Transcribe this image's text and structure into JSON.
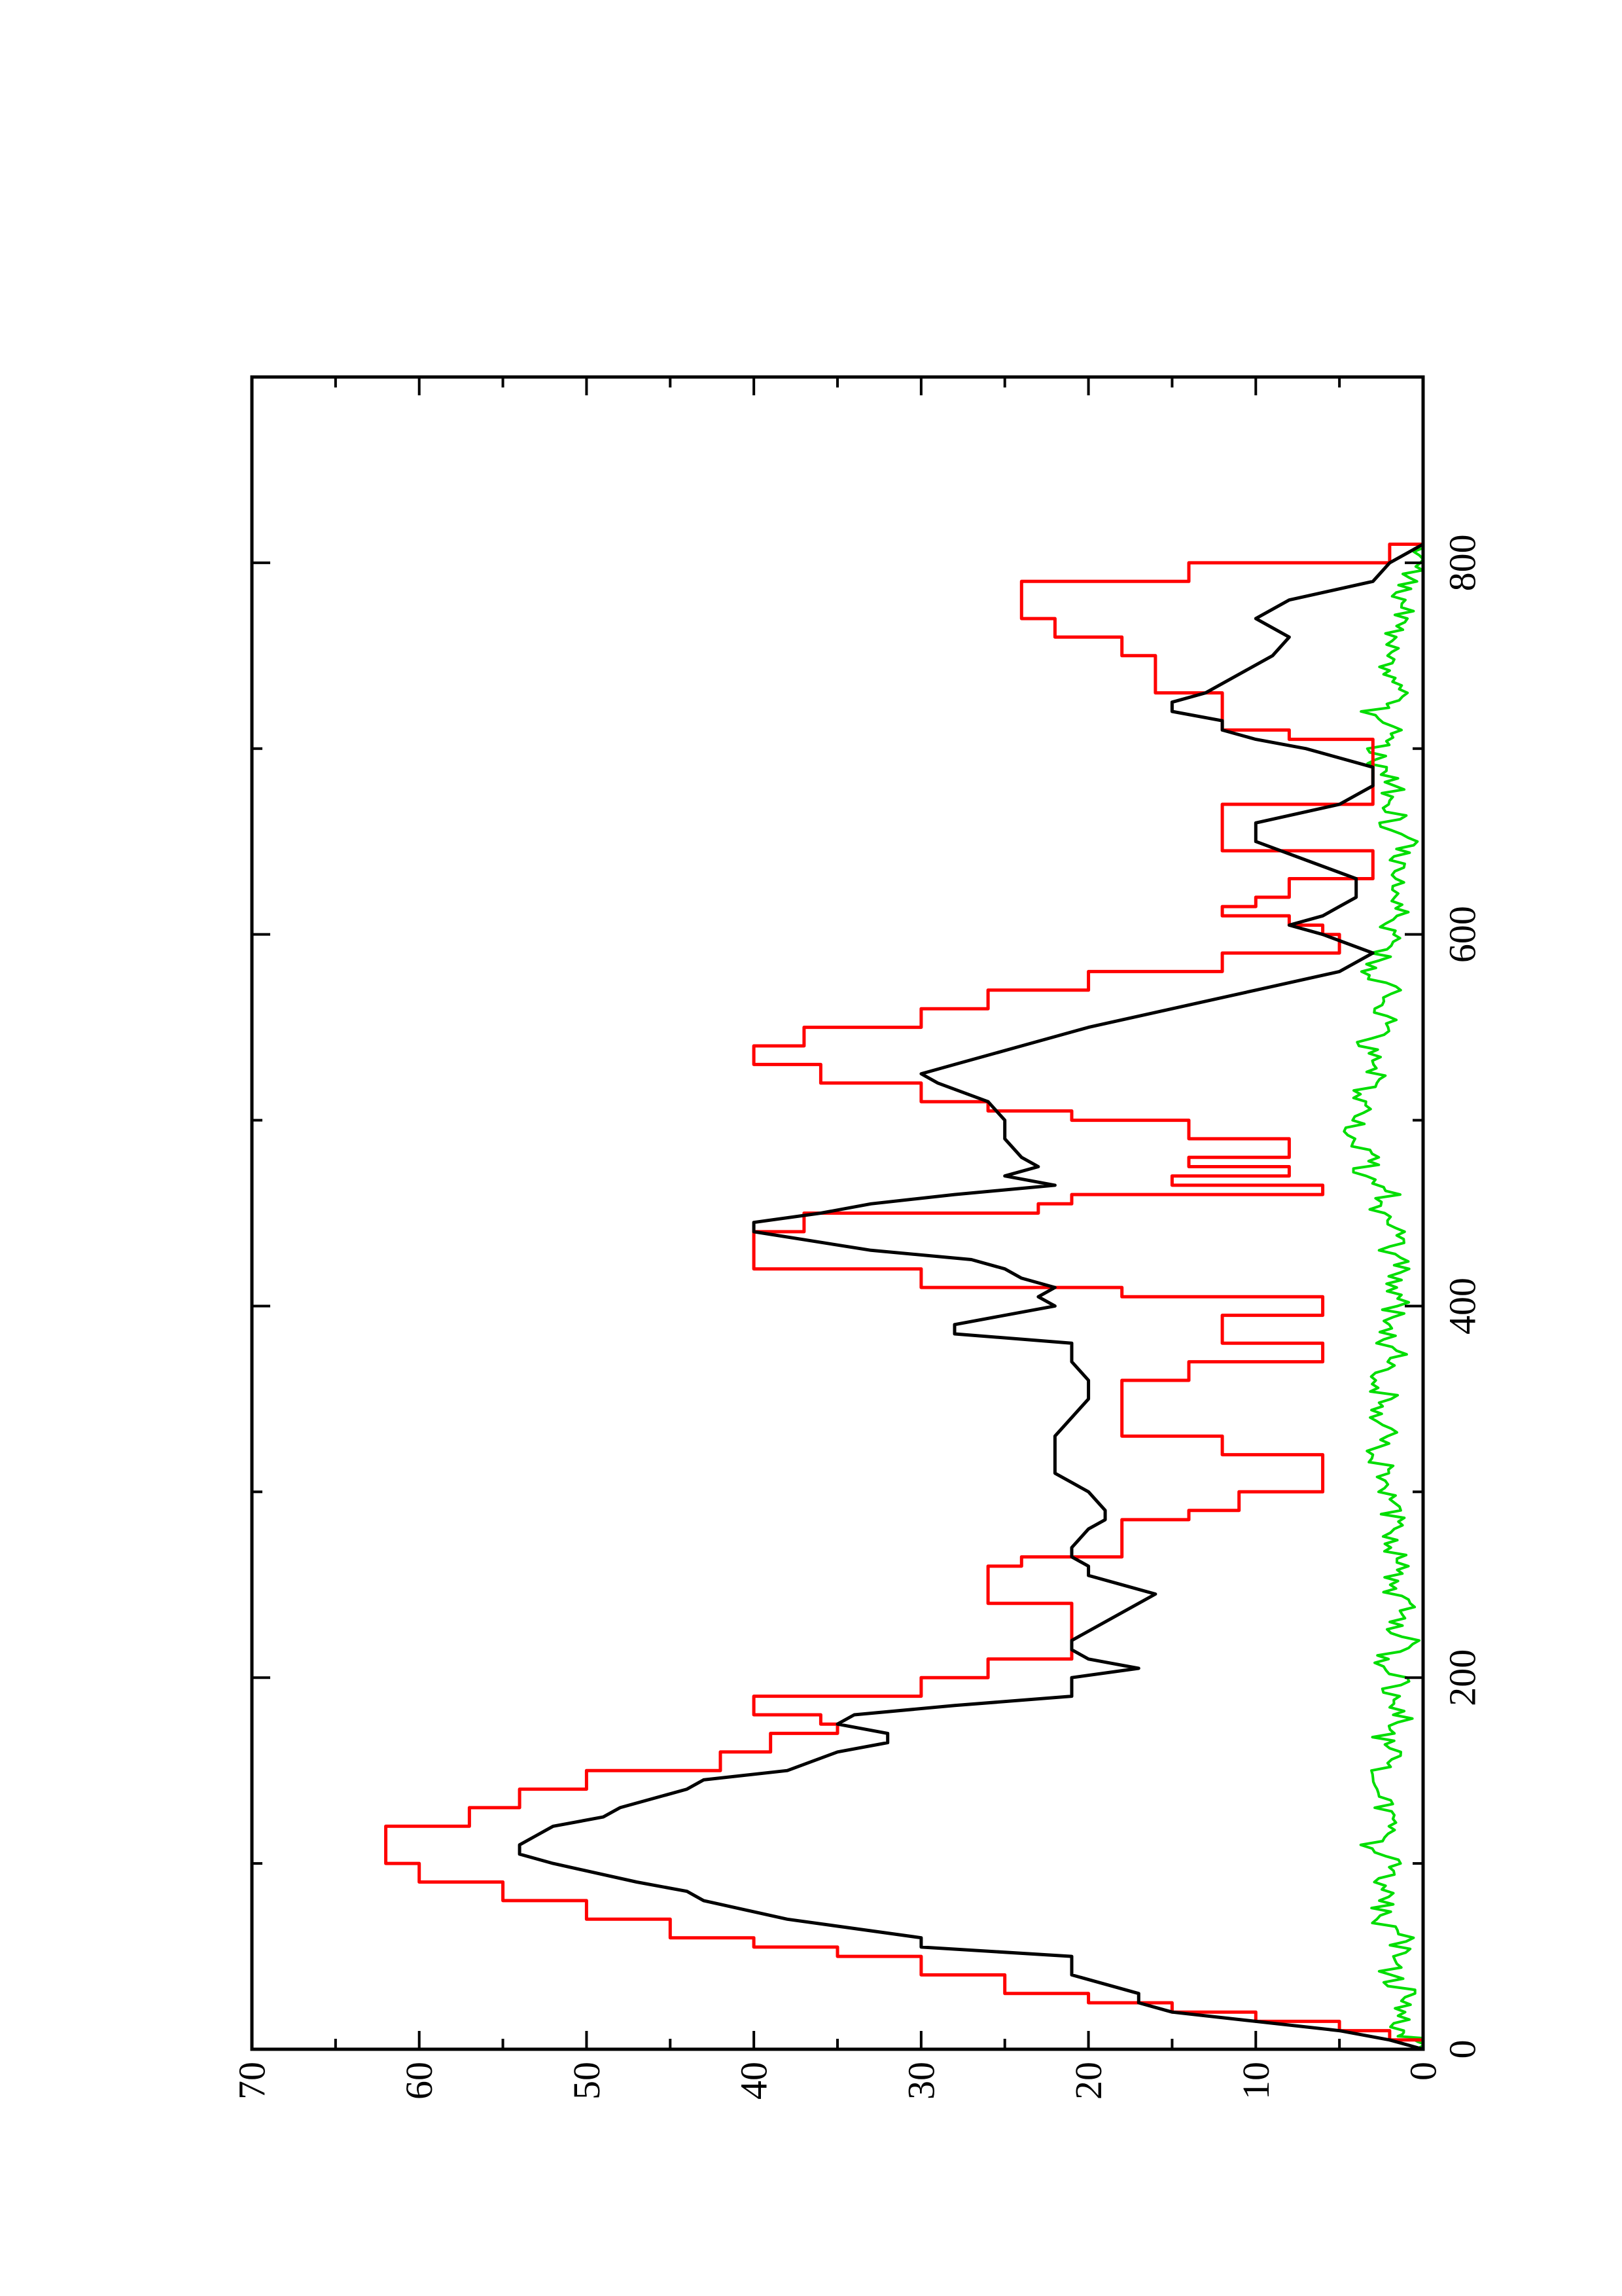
{
  "chart_data": {
    "type": "line",
    "title": "",
    "xlabel": "",
    "ylabel": "",
    "xlim": [
      0,
      900
    ],
    "ylim": [
      0,
      70
    ],
    "x_ticks": [
      0,
      200,
      400,
      600,
      800
    ],
    "x_tick_labels": [
      "0",
      "200",
      "400",
      "600",
      "800"
    ],
    "x_minor_ticks": [
      100,
      300,
      500,
      700
    ],
    "y_ticks": [
      0,
      10,
      20,
      30,
      40,
      50,
      60,
      70
    ],
    "y_tick_labels": [
      "0",
      "10",
      "20",
      "30",
      "40",
      "50",
      "60",
      "70"
    ],
    "y_minor_ticks": [
      5,
      15,
      25,
      35,
      45,
      55,
      65
    ],
    "grid": false,
    "orientation": "rotated-90-ccw",
    "series": [
      {
        "color": "#000000",
        "style": "smooth",
        "x": [
          0,
          5,
          10,
          15,
          20,
          25,
          30,
          40,
          50,
          55,
          60,
          70,
          80,
          85,
          90,
          100,
          105,
          110,
          115,
          120,
          125,
          130,
          140,
          145,
          150,
          160,
          165,
          170,
          175,
          180,
          185,
          190,
          200,
          205,
          210,
          215,
          220,
          240,
          245,
          250,
          255,
          260,
          265,
          270,
          280,
          285,
          290,
          300,
          305,
          310,
          320,
          330,
          340,
          350,
          360,
          370,
          380,
          385,
          390,
          400,
          405,
          410,
          415,
          420,
          425,
          430,
          440,
          445,
          450,
          455,
          460,
          465,
          470,
          475,
          480,
          490,
          500,
          510,
          520,
          525,
          530,
          540,
          550,
          560,
          570,
          580,
          590,
          600,
          605,
          610,
          615,
          620,
          630,
          640,
          650,
          660,
          670,
          680,
          690,
          700,
          705,
          710,
          715,
          720,
          725,
          730,
          740,
          750,
          760,
          770,
          780,
          790,
          800,
          810
        ],
        "y": [
          0,
          2,
          5,
          10,
          15,
          17,
          17,
          21,
          21,
          30,
          30,
          38,
          43,
          44,
          47,
          52,
          54,
          54,
          53,
          52,
          49,
          48,
          44,
          43,
          38,
          35,
          32,
          32,
          35,
          34,
          28,
          21,
          21,
          17,
          20,
          21,
          21,
          17,
          16,
          18,
          20,
          20,
          21,
          21,
          20,
          19,
          19,
          20,
          21,
          22,
          22,
          22,
          21,
          20,
          20,
          21,
          21,
          28,
          28,
          22,
          23,
          22,
          24,
          25,
          27,
          33,
          40,
          40,
          36,
          33,
          28,
          22,
          25,
          23,
          24,
          25,
          25,
          26,
          29,
          30,
          28,
          24,
          20,
          15,
          10,
          5,
          3,
          6,
          8,
          6,
          5,
          4,
          4,
          7,
          10,
          10,
          5,
          3,
          3,
          7,
          10,
          12,
          12,
          15,
          15,
          13,
          11,
          9,
          8,
          10,
          8,
          3,
          2,
          0
        ]
      },
      {
        "color": "#ff0000",
        "style": "step",
        "x": [
          0,
          5,
          10,
          15,
          20,
          25,
          30,
          40,
          50,
          55,
          60,
          70,
          80,
          90,
          100,
          110,
          120,
          130,
          140,
          150,
          160,
          170,
          175,
          180,
          190,
          200,
          210,
          220,
          240,
          250,
          260,
          265,
          270,
          280,
          285,
          290,
          300,
          310,
          320,
          330,
          340,
          350,
          360,
          370,
          375,
          380,
          390,
          395,
          400,
          405,
          410,
          420,
          430,
          440,
          450,
          455,
          460,
          465,
          470,
          475,
          480,
          490,
          500,
          505,
          510,
          520,
          530,
          540,
          550,
          560,
          570,
          580,
          590,
          600,
          605,
          610,
          615,
          620,
          630,
          640,
          645,
          650,
          660,
          670,
          680,
          690,
          700,
          705,
          710,
          720,
          730,
          740,
          750,
          760,
          770,
          780,
          790,
          800,
          810
        ],
        "y": [
          0,
          2,
          5,
          10,
          15,
          20,
          25,
          30,
          35,
          40,
          45,
          50,
          55,
          60,
          62,
          62,
          57,
          54,
          50,
          42,
          39,
          35,
          36,
          40,
          30,
          26,
          21,
          21,
          26,
          26,
          24,
          18,
          18,
          18,
          14,
          11,
          6,
          6,
          12,
          18,
          18,
          18,
          14,
          6,
          6,
          12,
          12,
          6,
          6,
          18,
          30,
          40,
          40,
          37,
          23,
          21,
          6,
          15,
          8,
          14,
          8,
          14,
          21,
          26,
          30,
          36,
          40,
          37,
          30,
          26,
          20,
          12,
          5,
          6,
          8,
          12,
          10,
          8,
          3,
          3,
          12,
          12,
          12,
          3,
          3,
          3,
          3,
          8,
          12,
          12,
          16,
          16,
          18,
          22,
          24,
          24,
          14,
          2,
          0
        ]
      },
      {
        "color": "#00dd00",
        "style": "noisy",
        "x": [
          0,
          5,
          10,
          20,
          30,
          40,
          50,
          60,
          70,
          80,
          90,
          100,
          110,
          120,
          130,
          140,
          150,
          160,
          170,
          180,
          190,
          200,
          210,
          220,
          230,
          240,
          250,
          260,
          270,
          280,
          290,
          300,
          310,
          320,
          330,
          340,
          350,
          360,
          370,
          380,
          390,
          400,
          410,
          420,
          430,
          440,
          450,
          460,
          470,
          480,
          490,
          500,
          510,
          520,
          530,
          540,
          550,
          560,
          570,
          580,
          590,
          600,
          610,
          620,
          630,
          640,
          650,
          660,
          670,
          680,
          690,
          700,
          710,
          720,
          730,
          740,
          750,
          760,
          770,
          780,
          790,
          800,
          810
        ],
        "y": [
          0,
          0.5,
          1.5,
          1.5,
          1,
          2,
          1.5,
          1,
          3,
          2,
          2.5,
          2,
          3,
          1.5,
          2.5,
          2,
          3,
          1.5,
          2.5,
          1,
          2,
          1.5,
          2.5,
          1,
          2,
          1,
          2.5,
          1.5,
          2,
          1.5,
          2,
          2.5,
          2,
          3,
          1.5,
          2.5,
          2,
          3,
          1.5,
          2,
          2.5,
          1.5,
          2,
          1,
          2,
          1.5,
          3,
          2,
          4,
          3,
          4.5,
          3.5,
          4,
          3,
          2.5,
          3.5,
          2,
          2.5,
          2,
          3,
          2.5,
          2,
          1.5,
          2,
          1.5,
          2,
          1,
          2,
          1.5,
          2,
          2.5,
          3,
          2,
          3,
          1.5,
          2.5,
          1.5,
          2,
          1,
          1.5,
          1,
          0.5,
          0
        ]
      }
    ]
  }
}
